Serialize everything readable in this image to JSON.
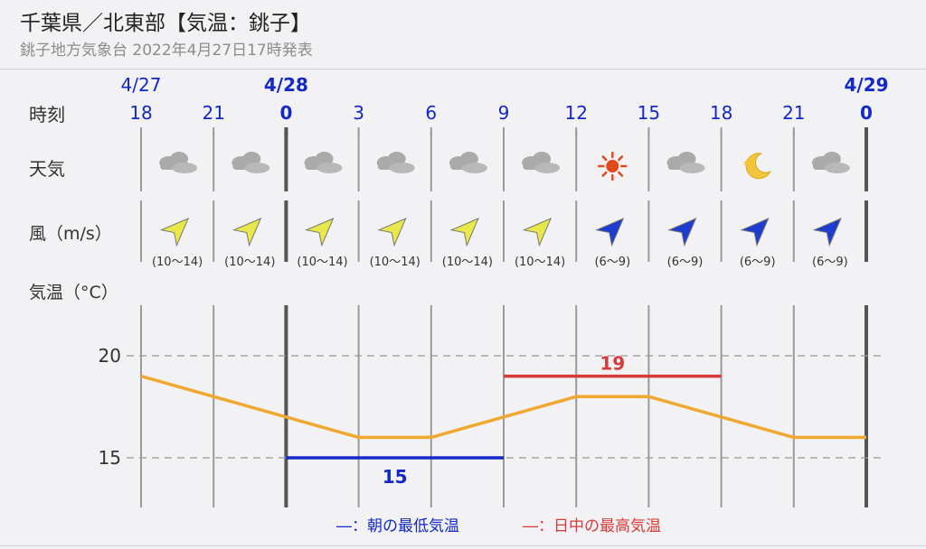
{
  "page": {
    "title": "千葉県／北東部【気温：銚子】",
    "subtitle": "銚子地方気象台 2022年4月27日17時発表"
  },
  "labels": {
    "time_row": "時刻",
    "weather_row": "天気",
    "wind_row": "風（m/s）",
    "temp_row": "気温（°C）"
  },
  "dates": [
    {
      "label": "4/27",
      "at_column": 0,
      "bold": false
    },
    {
      "label": "4/28",
      "at_column": 2,
      "bold": true
    },
    {
      "label": "4/29",
      "at_column": 10,
      "bold": true
    }
  ],
  "times": [
    "18",
    "21",
    "0",
    "3",
    "6",
    "9",
    "12",
    "15",
    "18",
    "21",
    "0"
  ],
  "weather": [
    {
      "icon": "cloud-icon"
    },
    {
      "icon": "cloud-icon"
    },
    {
      "icon": "cloud-icon"
    },
    {
      "icon": "cloud-icon"
    },
    {
      "icon": "cloud-icon"
    },
    {
      "icon": "cloud-icon"
    },
    {
      "icon": "sun-icon"
    },
    {
      "icon": "cloud-icon"
    },
    {
      "icon": "moon-icon"
    },
    {
      "icon": "cloud-icon"
    }
  ],
  "wind": [
    {
      "speed": "(10～14)",
      "direction": "SW",
      "color": "#e8e84a"
    },
    {
      "speed": "(10～14)",
      "direction": "SW",
      "color": "#e8e84a"
    },
    {
      "speed": "(10～14)",
      "direction": "SW",
      "color": "#e8e84a"
    },
    {
      "speed": "(10～14)",
      "direction": "SW",
      "color": "#e8e84a"
    },
    {
      "speed": "(10～14)",
      "direction": "SW",
      "color": "#e8e84a"
    },
    {
      "speed": "(10～14)",
      "direction": "SW",
      "color": "#e8e84a"
    },
    {
      "speed": "(6～9)",
      "direction": "SW",
      "color": "#1e3ccf"
    },
    {
      "speed": "(6～9)",
      "direction": "SW",
      "color": "#1e3ccf"
    },
    {
      "speed": "(6～9)",
      "direction": "SW",
      "color": "#1e3ccf"
    },
    {
      "speed": "(6～9)",
      "direction": "SW",
      "color": "#1e3ccf"
    }
  ],
  "chart_data": {
    "type": "line",
    "x": [
      "18",
      "21",
      "0",
      "3",
      "6",
      "9",
      "12",
      "15",
      "18",
      "21",
      "0"
    ],
    "series": [
      {
        "values": [
          19,
          18,
          17,
          16,
          16,
          17,
          18,
          18,
          17,
          16,
          16
        ],
        "color": "#f0a830"
      }
    ],
    "ylim": [
      12.6,
      22.3
    ],
    "yticks": [
      20,
      15
    ],
    "min_temp": {
      "value": 15,
      "label": "15",
      "from_column": 2,
      "to_column": 5,
      "color": "#1428c8"
    },
    "max_temp": {
      "value": 19,
      "label": "19",
      "from_column": 5,
      "to_column": 8,
      "color": "#d83a3a"
    },
    "legend": [
      {
        "text": "―：朝の最低気温",
        "color": "#1428c8"
      },
      {
        "text": "―：日中の最高気温",
        "color": "#d83a3a"
      }
    ],
    "grid": true
  }
}
